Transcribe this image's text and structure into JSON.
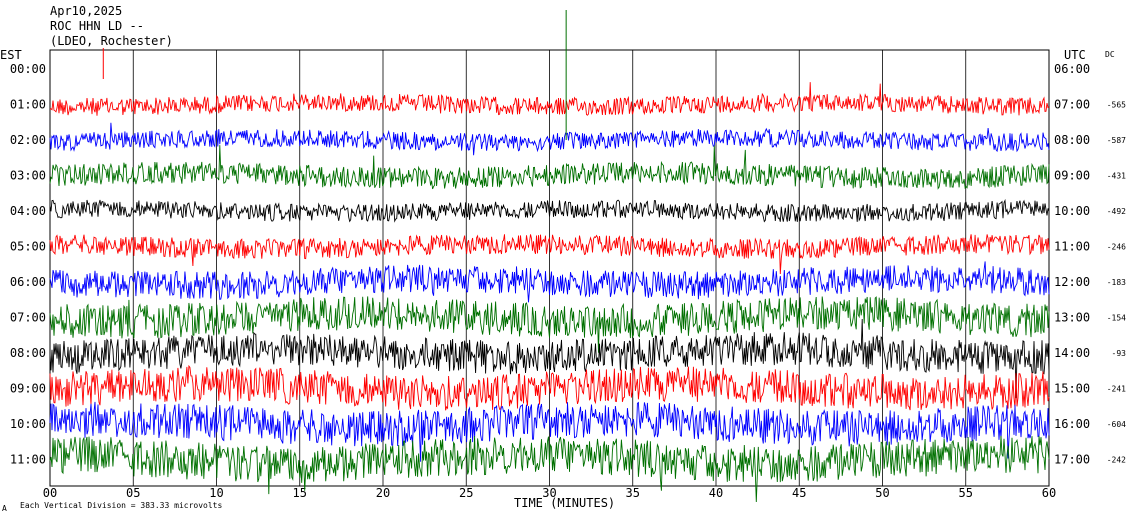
{
  "header": {
    "date": "Apr10,2025",
    "station": "ROC HHN LD --",
    "network": "(LDEO, Rochester)"
  },
  "left_axis_label": "EST",
  "right_axis_label": "UTC",
  "dc_label": "DC",
  "footer": {
    "scale_text": "Each Vertical Division = 383.33 microvolts",
    "corner_mark": "A",
    "xlabel": "TIME (MINUTES)"
  },
  "colors": {
    "red": "#ff0000",
    "blue": "#0000ff",
    "green": "#007000",
    "black": "#000000",
    "grid": "#000000"
  },
  "chart_data": {
    "type": "line",
    "xlabel": "TIME (MINUTES)",
    "xlim": [
      0,
      60
    ],
    "x_ticks": [
      "00",
      "05",
      "10",
      "15",
      "20",
      "25",
      "30",
      "35",
      "40",
      "45",
      "50",
      "55",
      "60"
    ],
    "rows": [
      {
        "est": "00:00",
        "utc": "06:00",
        "dc": "",
        "color": "red",
        "amp": 0
      },
      {
        "est": "01:00",
        "utc": "07:00",
        "dc": "-565",
        "color": "red",
        "amp": 9
      },
      {
        "est": "02:00",
        "utc": "08:00",
        "dc": "-587",
        "color": "blue",
        "amp": 9
      },
      {
        "est": "03:00",
        "utc": "09:00",
        "dc": "-431",
        "color": "green",
        "amp": 11
      },
      {
        "est": "04:00",
        "utc": "10:00",
        "dc": "-492",
        "color": "black",
        "amp": 9
      },
      {
        "est": "05:00",
        "utc": "11:00",
        "dc": "-246",
        "color": "red",
        "amp": 10
      },
      {
        "est": "06:00",
        "utc": "12:00",
        "dc": "-183",
        "color": "blue",
        "amp": 14
      },
      {
        "est": "07:00",
        "utc": "13:00",
        "dc": "-154",
        "color": "green",
        "amp": 17
      },
      {
        "est": "08:00",
        "utc": "14:00",
        "dc": "-93",
        "color": "black",
        "amp": 17
      },
      {
        "est": "09:00",
        "utc": "15:00",
        "dc": "-241",
        "color": "red",
        "amp": 18
      },
      {
        "est": "10:00",
        "utc": "16:00",
        "dc": "-604",
        "color": "blue",
        "amp": 18
      },
      {
        "est": "11:00",
        "utc": "17:00",
        "dc": "-242",
        "color": "green",
        "amp": 19
      }
    ]
  }
}
